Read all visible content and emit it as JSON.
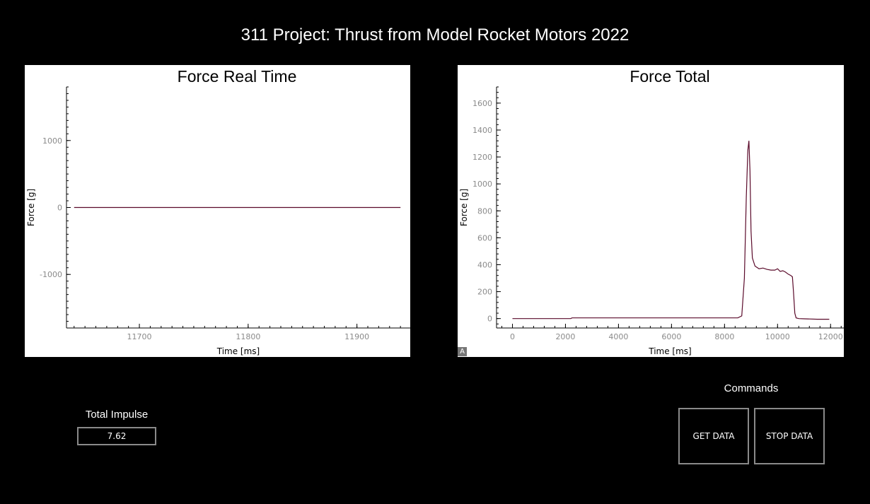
{
  "app": {
    "title": "311 Project: Thrust from Model Rocket Motors 2022"
  },
  "impulse": {
    "label": "Total Impulse",
    "value": "7.62"
  },
  "commands": {
    "label": "Commands",
    "get_label": "GET DATA",
    "stop_label": "STOP DATA"
  },
  "autoscale": {
    "label": "A"
  },
  "colors": {
    "background": "#000000",
    "series": "#5a0a2a",
    "tick_text": "#8a8a8a",
    "button_border": "#8a8a8a"
  },
  "chart_data": [
    {
      "type": "line",
      "title": "Force Real Time",
      "xlabel": "Time [ms]",
      "ylabel": "Force [g]",
      "xlim": [
        11633,
        11949
      ],
      "ylim": [
        -1800,
        1800
      ],
      "x_ticks": [
        11700,
        11800,
        11900
      ],
      "y_ticks": [
        -1000,
        0,
        1000
      ],
      "x_tick_labels": [
        "11700",
        "11800",
        "11900"
      ],
      "y_tick_labels": [
        "-1000",
        "0",
        "1000"
      ],
      "series": [
        {
          "x": [
            11640,
            11940
          ],
          "y": [
            0,
            0
          ]
        }
      ]
    },
    {
      "type": "line",
      "title": "Force Total",
      "xlabel": "Time [ms]",
      "ylabel": "Force [g]",
      "xlim": [
        -600,
        12500
      ],
      "ylim": [
        -70,
        1720
      ],
      "x_ticks": [
        0,
        2000,
        4000,
        6000,
        8000,
        10000,
        12000
      ],
      "y_ticks": [
        0,
        200,
        400,
        600,
        800,
        1000,
        1200,
        1400,
        1600
      ],
      "x_tick_labels": [
        "0",
        "2000",
        "4000",
        "6000",
        "8000",
        "10000",
        "12000"
      ],
      "y_tick_labels": [
        "0",
        "200",
        "400",
        "600",
        "800",
        "1000",
        "1200",
        "1400",
        "1600"
      ],
      "series": [
        {
          "x": [
            0,
            2200,
            2250,
            8500,
            8650,
            8750,
            8820,
            8880,
            8920,
            8960,
            9000,
            9050,
            9150,
            9300,
            9450,
            9600,
            9750,
            9900,
            10000,
            10100,
            10200,
            10300,
            10400,
            10500,
            10560,
            10600,
            10650,
            10700,
            10800,
            11000,
            11500,
            11950
          ],
          "y": [
            0,
            0,
            5,
            5,
            20,
            300,
            900,
            1250,
            1320,
            1100,
            650,
            450,
            390,
            370,
            375,
            365,
            360,
            360,
            370,
            350,
            355,
            345,
            330,
            320,
            310,
            200,
            40,
            5,
            0,
            -2,
            -5,
            -5
          ]
        }
      ]
    }
  ]
}
